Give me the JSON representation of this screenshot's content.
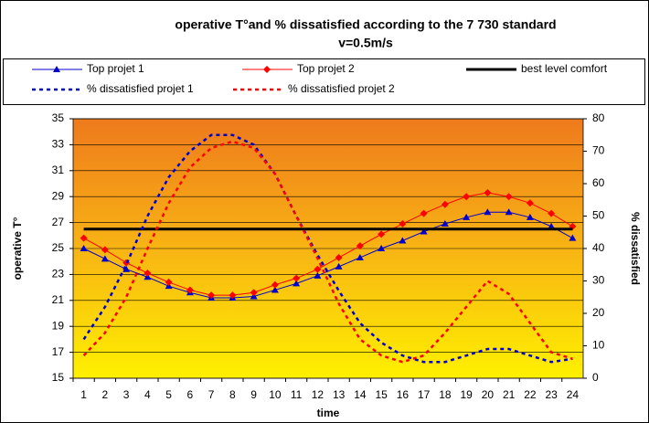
{
  "chart_data": {
    "type": "line",
    "title": "operative T°and % dissatisfied according to the 7 730 standard",
    "subtitle": "v=0.5m/s",
    "x_label": "time",
    "y_label": "operative T°",
    "y2_label": "% dissatisfied",
    "categories": [
      1,
      2,
      3,
      4,
      5,
      6,
      7,
      8,
      9,
      10,
      11,
      12,
      13,
      14,
      15,
      16,
      17,
      18,
      19,
      20,
      21,
      22,
      23,
      24
    ],
    "ylim": [
      15,
      35
    ],
    "yticks": [
      15,
      17,
      19,
      21,
      23,
      25,
      27,
      29,
      31,
      33,
      35
    ],
    "y2lim": [
      0,
      80
    ],
    "y2ticks": [
      0,
      10,
      20,
      30,
      40,
      50,
      60,
      70,
      80
    ],
    "grid": true,
    "series": [
      {
        "name": "Top projet 1",
        "color": "#0000cc",
        "marker": "triangle",
        "dash": "solid",
        "width": 1,
        "values": [
          25.0,
          24.2,
          23.4,
          22.8,
          22.1,
          21.6,
          21.2,
          21.2,
          21.3,
          21.8,
          22.3,
          22.9,
          23.6,
          24.3,
          25.0,
          25.6,
          26.3,
          26.9,
          27.4,
          27.8,
          27.8,
          27.4,
          26.7,
          25.8
        ]
      },
      {
        "name": "Top projet 2",
        "color": "#ff0000",
        "marker": "diamond",
        "dash": "solid",
        "width": 1,
        "values": [
          25.8,
          24.9,
          23.9,
          23.1,
          22.4,
          21.8,
          21.4,
          21.4,
          21.6,
          22.2,
          22.7,
          23.4,
          24.3,
          25.2,
          26.1,
          26.9,
          27.7,
          28.4,
          29.0,
          29.3,
          29.0,
          28.5,
          27.7,
          26.7
        ]
      },
      {
        "name": "best level comfort",
        "color": "#000000",
        "marker": "none",
        "dash": "solid",
        "width": 3,
        "values": [
          26.5,
          26.5,
          26.5,
          26.5,
          26.5,
          26.5,
          26.5,
          26.5,
          26.5,
          26.5,
          26.5,
          26.5,
          26.5,
          26.5,
          26.5,
          26.5,
          26.5,
          26.5,
          26.5,
          26.5,
          26.5,
          26.5,
          26.5,
          26.5
        ]
      },
      {
        "name": "% dissatisfied projet 1",
        "color": "#0000cc",
        "marker": "none",
        "dash": "dotted",
        "width": 2.5,
        "axis": "y2",
        "values": [
          12,
          22,
          35,
          50,
          62,
          70,
          75,
          75,
          72,
          63,
          50,
          38,
          27,
          17,
          11,
          7,
          5,
          5,
          7,
          9,
          9,
          7,
          5,
          6
        ]
      },
      {
        "name": "% dissatisfied projet 2",
        "color": "#ff0000",
        "marker": "none",
        "dash": "dotted",
        "width": 2.5,
        "axis": "y2",
        "values": [
          7,
          14,
          25,
          40,
          54,
          65,
          71,
          73,
          71,
          63,
          50,
          37,
          23,
          12,
          7,
          5,
          7,
          14,
          22,
          30,
          26,
          17,
          8,
          6
        ]
      }
    ]
  }
}
